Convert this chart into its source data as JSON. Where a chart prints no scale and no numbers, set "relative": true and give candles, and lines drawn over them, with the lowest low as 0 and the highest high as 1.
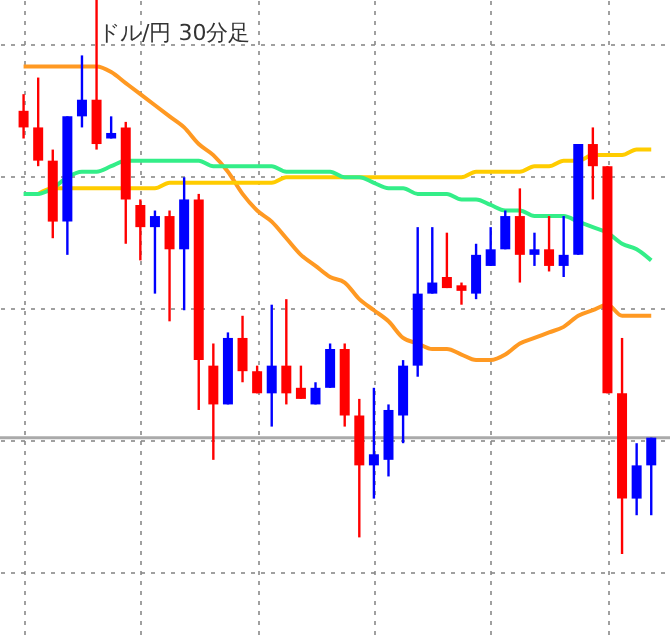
{
  "chart_data": {
    "type": "candlestick",
    "title": "ドル/円 30分足",
    "relative": true,
    "grid": true,
    "categories": [
      null,
      null,
      null,
      null,
      null,
      null,
      null,
      null,
      null,
      null,
      null,
      null,
      null,
      null,
      null,
      null,
      null,
      null,
      null,
      null,
      null,
      null,
      null,
      null,
      null,
      null,
      null,
      null,
      null,
      null,
      null,
      null,
      null,
      null,
      null,
      null,
      null,
      null,
      null,
      null,
      null,
      null,
      null,
      null
    ],
    "ohlc": [
      [
        0.8,
        0.83,
        0.75,
        0.77
      ],
      [
        0.77,
        0.86,
        0.7,
        0.71
      ],
      [
        0.71,
        0.73,
        0.57,
        0.6
      ],
      [
        0.6,
        0.79,
        0.54,
        0.79
      ],
      [
        0.79,
        0.9,
        0.77,
        0.82
      ],
      [
        0.82,
        1,
        0.73,
        0.74
      ],
      [
        0.75,
        0.79,
        0.75,
        0.76
      ],
      [
        0.77,
        0.78,
        0.56,
        0.64
      ],
      [
        0.63,
        0.64,
        0.53,
        0.59
      ],
      [
        0.59,
        0.62,
        0.47,
        0.61
      ],
      [
        0.61,
        0.62,
        0.42,
        0.55
      ],
      [
        0.55,
        0.68,
        0.44,
        0.64
      ],
      [
        0.64,
        0.65,
        0.26,
        0.35
      ],
      [
        0.34,
        0.38,
        0.17,
        0.27
      ],
      [
        0.27,
        0.4,
        0.27,
        0.39
      ],
      [
        0.39,
        0.43,
        0.31,
        0.33
      ],
      [
        0.33,
        0.34,
        0.29,
        0.29
      ],
      [
        0.29,
        0.45,
        0.23,
        0.34
      ],
      [
        0.34,
        0.46,
        0.27,
        0.29
      ],
      [
        0.3,
        0.34,
        0.28,
        0.28
      ],
      [
        0.27,
        0.31,
        0.27,
        0.3
      ],
      [
        0.3,
        0.38,
        0.3,
        0.37
      ],
      [
        0.37,
        0.38,
        0.23,
        0.25
      ],
      [
        0.25,
        0.28,
        0.03,
        0.16
      ],
      [
        0.16,
        0.3,
        0.1,
        0.18
      ],
      [
        0.17,
        0.27,
        0.14,
        0.26
      ],
      [
        0.25,
        0.35,
        0.2,
        0.34
      ],
      [
        0.34,
        0.59,
        0.32,
        0.47
      ],
      [
        0.47,
        0.59,
        0.47,
        0.49
      ],
      [
        0.5,
        0.58,
        0.48,
        0.48
      ],
      [
        0.485,
        0.49,
        0.45,
        0.475
      ],
      [
        0.47,
        0.56,
        0.46,
        0.54
      ],
      [
        0.52,
        0.59,
        0.52,
        0.55
      ],
      [
        0.55,
        0.62,
        0.55,
        0.61
      ],
      [
        0.61,
        0.66,
        0.49,
        0.54
      ],
      [
        0.54,
        0.58,
        0.52,
        0.55
      ],
      [
        0.55,
        0.61,
        0.51,
        0.52
      ],
      [
        0.52,
        0.61,
        0.5,
        0.54
      ],
      [
        0.54,
        0.74,
        0.54,
        0.74
      ],
      [
        0.74,
        0.77,
        0.64,
        0.7
      ],
      [
        0.7,
        0.7,
        0.29,
        0.29
      ],
      [
        0.29,
        0.39,
        0,
        0.1
      ],
      [
        0.1,
        0.2,
        0.07,
        0.16
      ],
      [
        0.16,
        0.21,
        0.07,
        0.21
      ]
    ],
    "colors": [
      "#ff0000",
      "#ff0000",
      "#ff0000",
      "#0000ff",
      "#0000ff",
      "#ff0000",
      "#0000ff",
      "#ff0000",
      "#ff0000",
      "#0000ff",
      "#ff0000",
      "#0000ff",
      "#ff0000",
      "#ff0000",
      "#0000ff",
      "#ff0000",
      "#ff0000",
      "#0000ff",
      "#ff0000",
      "#ff0000",
      "#0000ff",
      "#0000ff",
      "#ff0000",
      "#ff0000",
      "#0000ff",
      "#0000ff",
      "#0000ff",
      "#0000ff",
      "#0000ff",
      "#ff0000",
      "#ff0000",
      "#0000ff",
      "#0000ff",
      "#0000ff",
      "#ff0000",
      "#0000ff",
      "#ff0000",
      "#0000ff",
      "#0000ff",
      "#ff0000",
      "#ff0000",
      "#ff0000",
      "#0000ff",
      "#0000ff"
    ],
    "series": [
      {
        "type": "line",
        "color": "#ff9922",
        "values": [
          0.88,
          0.88,
          0.88,
          0.88,
          0.88,
          0.88,
          0.87,
          0.85,
          0.83,
          0.81,
          0.79,
          0.77,
          0.74,
          0.72,
          0.69,
          0.65,
          0.62,
          0.6,
          0.57,
          0.54,
          0.52,
          0.5,
          0.49,
          0.46,
          0.44,
          0.42,
          0.39,
          0.38,
          0.37,
          0.37,
          0.36,
          0.35,
          0.35,
          0.36,
          0.38,
          0.39,
          0.4,
          0.41,
          0.43,
          0.44,
          0.45,
          0.43,
          0.43,
          0.43
        ]
      },
      {
        "type": "line",
        "color": "#ffcc00",
        "values": [
          null,
          0.65,
          0.66,
          0.66,
          0.66,
          0.66,
          0.66,
          0.66,
          0.66,
          0.66,
          0.67,
          0.67,
          0.67,
          0.67,
          0.67,
          0.67,
          0.67,
          0.67,
          0.68,
          0.68,
          0.68,
          0.68,
          0.68,
          0.68,
          0.68,
          0.68,
          0.68,
          0.68,
          0.68,
          0.68,
          0.68,
          0.69,
          0.69,
          0.69,
          0.69,
          0.7,
          0.7,
          0.71,
          0.71,
          0.72,
          0.72,
          0.72,
          0.73,
          0.73
        ]
      },
      {
        "type": "line",
        "color": "#33ee88",
        "values": [
          0.65,
          0.65,
          0.66,
          0.68,
          0.69,
          0.69,
          0.7,
          0.71,
          0.71,
          0.71,
          0.71,
          0.71,
          0.71,
          0.7,
          0.7,
          0.7,
          0.7,
          0.7,
          0.69,
          0.69,
          0.69,
          0.69,
          0.68,
          0.68,
          0.67,
          0.66,
          0.66,
          0.65,
          0.65,
          0.65,
          0.64,
          0.64,
          0.63,
          0.62,
          0.62,
          0.61,
          0.61,
          0.61,
          0.6,
          0.59,
          0.58,
          0.56,
          0.55,
          0.53
        ]
      }
    ],
    "ref_lines": [
      {
        "axis": "y",
        "value": 0.21,
        "color": "#aaaaaa"
      }
    ]
  }
}
